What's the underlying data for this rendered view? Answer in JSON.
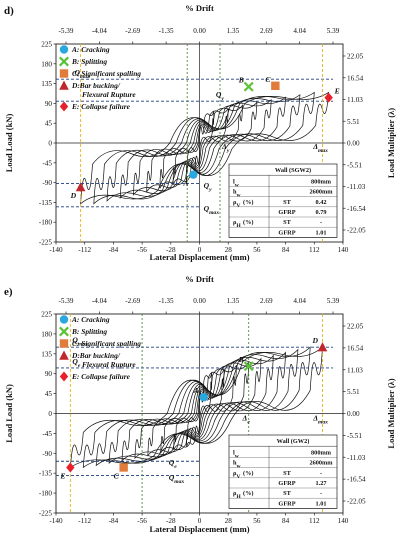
{
  "colors": {
    "cracking": "#29A8E0",
    "splitting": "#5BC236",
    "spalling": "#E07B39",
    "buckling": "#C0262B",
    "collapse": "#E8202A",
    "q_line": "#1F3E80",
    "y_line": "#E6B422",
    "grid_green": "#4E8A3A"
  },
  "chart_data": [
    {
      "panel_label": "d)",
      "type": "line",
      "title": "% Drift",
      "xlabel": "Lateral Displacement (mm)",
      "ylabel": "Load Load (kN)",
      "y2label": "Load Multiplier (λ)",
      "xlim": [
        -140,
        140
      ],
      "ylim": [
        -225,
        225
      ],
      "x_ticks": [
        "-140",
        "-112",
        "-84",
        "-56",
        "-28",
        "0",
        "28",
        "56",
        "84",
        "112",
        "140"
      ],
      "y_ticks": [
        "225",
        "180",
        "135",
        "90",
        "45",
        "0",
        "-45",
        "-90",
        "-135",
        "-180",
        "-225"
      ],
      "top_ticks": [
        "-5.39",
        "-4.04",
        "-2.69",
        "-1.35",
        "0.00",
        "1.35",
        "2.69",
        "4.04",
        "5.39"
      ],
      "right_ticks": [
        "22.05",
        "16.54",
        "11.03",
        "5.51",
        "0.00",
        "-5.51",
        "-11.03",
        "-16.54",
        "-22.05"
      ],
      "legend": [
        {
          "marker": "circle",
          "color_key": "cracking",
          "label": "A: Cracking"
        },
        {
          "marker": "x",
          "color_key": "splitting",
          "label": "B: Splitting"
        },
        {
          "marker": "square",
          "color_key": "spalling",
          "label": "C: Significant spalling"
        },
        {
          "marker": "triangle",
          "color_key": "buckling",
          "label": "D:Bar bucking/",
          "label2": "Flexural Rupture"
        },
        {
          "marker": "diamond",
          "color_key": "collapse",
          "label": "E: Collapse failure"
        }
      ],
      "points": [
        {
          "label": "A",
          "marker": "circle",
          "x": -6,
          "y": -72
        },
        {
          "label": "B",
          "marker": "x",
          "x": 48,
          "y": 128
        },
        {
          "label": "C",
          "marker": "square",
          "x": 74,
          "y": 130
        },
        {
          "label": "D",
          "marker": "triangle",
          "x": -116,
          "y": -100
        },
        {
          "label": "E",
          "marker": "diamond",
          "x": 126,
          "y": 103
        }
      ],
      "reference_lines": [
        {
          "type": "h",
          "y": 145,
          "style": "q"
        },
        {
          "type": "h",
          "y": 95,
          "style": "q"
        },
        {
          "type": "h",
          "y": -145,
          "style": "q"
        },
        {
          "type": "h",
          "y": -92,
          "style": "q"
        },
        {
          "type": "v",
          "x": 120,
          "style": "y"
        },
        {
          "type": "v",
          "x": -116,
          "style": "y"
        },
        {
          "type": "v",
          "x": 20,
          "style": "g"
        },
        {
          "type": "v",
          "x": -12,
          "style": "g"
        }
      ],
      "annotations": [
        {
          "text": "Q",
          "sub": "max",
          "x": -122,
          "y": 154
        },
        {
          "text": "Q",
          "sub": "y",
          "x": 16,
          "y": 104
        },
        {
          "text": "Δ",
          "sub": "y",
          "x": 22,
          "y": -14
        },
        {
          "text": "Δ",
          "sub": "max",
          "x": 111,
          "y": -14
        },
        {
          "text": "Q",
          "sub": "y",
          "x": 4,
          "y": -102
        },
        {
          "text": "Q",
          "sub": "max",
          "x": 4,
          "y": -155
        }
      ],
      "table": {
        "title": "Wall (SGW2)",
        "rows": [
          {
            "sym": "l",
            "sub": "w",
            "col2": "",
            "val": "800mm"
          },
          {
            "sym": "h",
            "sub": "w",
            "col2": "",
            "val": "2600mm"
          },
          {
            "sym": "ρ",
            "sub": "V",
            "unit": " (%)",
            "col2": "ST",
            "val": "0.42"
          },
          {
            "sym": "",
            "sub": "",
            "col2": "GFRP",
            "val": "0.79"
          },
          {
            "sym": "ρ",
            "sub": "H",
            "unit": " (%)",
            "col2": "ST",
            "val": "-"
          },
          {
            "sym": "",
            "sub": "",
            "col2": "GFRP",
            "val": "1.01"
          }
        ]
      },
      "hysteresis": {
        "pos_peak": [
          126,
          115
        ],
        "neg_peak": [
          -116,
          -138
        ],
        "loops": 9
      }
    },
    {
      "panel_label": "e)",
      "type": "line",
      "title": "% Drift",
      "xlabel": "Lateral Displacement (mm)",
      "ylabel": "Load Load (kN)",
      "y2label": "Load Multiplier (λ)",
      "xlim": [
        -140,
        140
      ],
      "ylim": [
        -225,
        225
      ],
      "x_ticks": [
        "-140",
        "-112",
        "-84",
        "-56",
        "-28",
        "0",
        "28",
        "56",
        "84",
        "112",
        "140"
      ],
      "y_ticks": [
        "225",
        "180",
        "135",
        "90",
        "45",
        "0",
        "-45",
        "-90",
        "-135",
        "-180",
        "-225"
      ],
      "top_ticks": [
        "-5.39",
        "-4.04",
        "-2.69",
        "-1.35",
        "0.00",
        "1.35",
        "2.69",
        "4.04",
        "5.39"
      ],
      "right_ticks": [
        "22.05",
        "16.54",
        "11.03",
        "5.51",
        "0.00",
        "-5.51",
        "-11.03",
        "-16.54",
        "-22.05"
      ],
      "legend": [
        {
          "marker": "circle",
          "color_key": "cracking",
          "label": "A: Cracking"
        },
        {
          "marker": "x",
          "color_key": "splitting",
          "label": "B: Splitting"
        },
        {
          "marker": "square",
          "color_key": "spalling",
          "label": "C: Significant spalling"
        },
        {
          "marker": "triangle",
          "color_key": "buckling",
          "label": "D:Bar bucking/",
          "label2": "Flexural Rupture"
        },
        {
          "marker": "diamond",
          "color_key": "collapse",
          "label": "E: Collapse failure"
        }
      ],
      "points": [
        {
          "label": "A",
          "marker": "circle",
          "x": 4,
          "y": 37
        },
        {
          "label": "B",
          "marker": "x",
          "x": 48,
          "y": 107
        },
        {
          "label": "C",
          "marker": "square",
          "x": -74,
          "y": -122
        },
        {
          "label": "D",
          "marker": "triangle",
          "x": 120,
          "y": 150
        },
        {
          "label": "E",
          "marker": "diamond",
          "x": -126,
          "y": -122
        }
      ],
      "reference_lines": [
        {
          "type": "h",
          "y": 150,
          "style": "q"
        },
        {
          "type": "h",
          "y": 103,
          "style": "q"
        },
        {
          "type": "h",
          "y": -108,
          "style": "q"
        },
        {
          "type": "h",
          "y": -140,
          "style": "q"
        },
        {
          "type": "v",
          "x": 120,
          "style": "y"
        },
        {
          "type": "v",
          "x": -126,
          "style": "y"
        },
        {
          "type": "v",
          "x": 48,
          "style": "g"
        },
        {
          "type": "v",
          "x": -56,
          "style": "g"
        }
      ],
      "annotations": [
        {
          "text": "Q",
          "sub": "max",
          "x": -124,
          "y": 160
        },
        {
          "text": "Q",
          "sub": "e",
          "x": -124,
          "y": 112
        },
        {
          "text": "Δ",
          "sub": "e",
          "x": 42,
          "y": -16
        },
        {
          "text": "Δ",
          "sub": "max",
          "x": 111,
          "y": -16
        },
        {
          "text": "Q",
          "sub": "e",
          "x": -30,
          "y": -116
        },
        {
          "text": "Q",
          "sub": "max",
          "x": -30,
          "y": -150
        }
      ],
      "table": {
        "title": "Wall (GW2)",
        "rows": [
          {
            "sym": "l",
            "sub": "w",
            "col2": "",
            "val": "800mm"
          },
          {
            "sym": "h",
            "sub": "w",
            "col2": "",
            "val": "2600mm"
          },
          {
            "sym": "ρ",
            "sub": "V",
            "unit": " (%)",
            "col2": "ST",
            "val": "-"
          },
          {
            "sym": "",
            "sub": "",
            "col2": "GFRP",
            "val": "1.27"
          },
          {
            "sym": "ρ",
            "sub": "H",
            "unit": " (%)",
            "col2": "ST",
            "val": "-"
          },
          {
            "sym": "",
            "sub": "",
            "col2": "GFRP",
            "val": "1.01"
          }
        ]
      },
      "hysteresis": {
        "pos_peak": [
          120,
          150
        ],
        "neg_peak": [
          -126,
          -122
        ],
        "loops": 10
      }
    }
  ]
}
